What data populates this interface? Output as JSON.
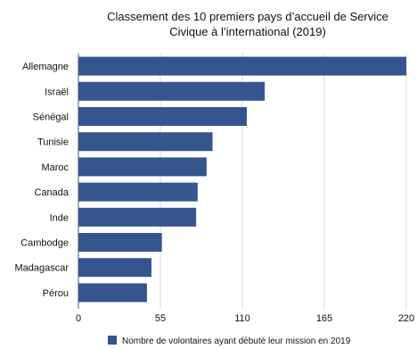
{
  "chart_data": {
    "type": "bar",
    "orientation": "horizontal",
    "title_lines": [
      "Classement des 10 premiers pays d’accueil de Service",
      "Civique à l’international (2019)"
    ],
    "categories": [
      "Allemagne",
      "Israël",
      "Sénégal",
      "Tunisie",
      "Maroc",
      "Canada",
      "Inde",
      "Cambodge",
      "Madagascar",
      "Pérou"
    ],
    "series": [
      {
        "name": "Nombre de volontaires ayant débuté leur mission en 2019",
        "values": [
          220,
          125,
          113,
          90,
          86,
          80,
          79,
          56,
          49,
          46
        ],
        "color": "#35558f"
      }
    ],
    "xlim": [
      0,
      220
    ],
    "xticks": [
      "0",
      "55",
      "110",
      "165",
      "220"
    ],
    "grid": "vertical",
    "legend_position": "bottom"
  }
}
